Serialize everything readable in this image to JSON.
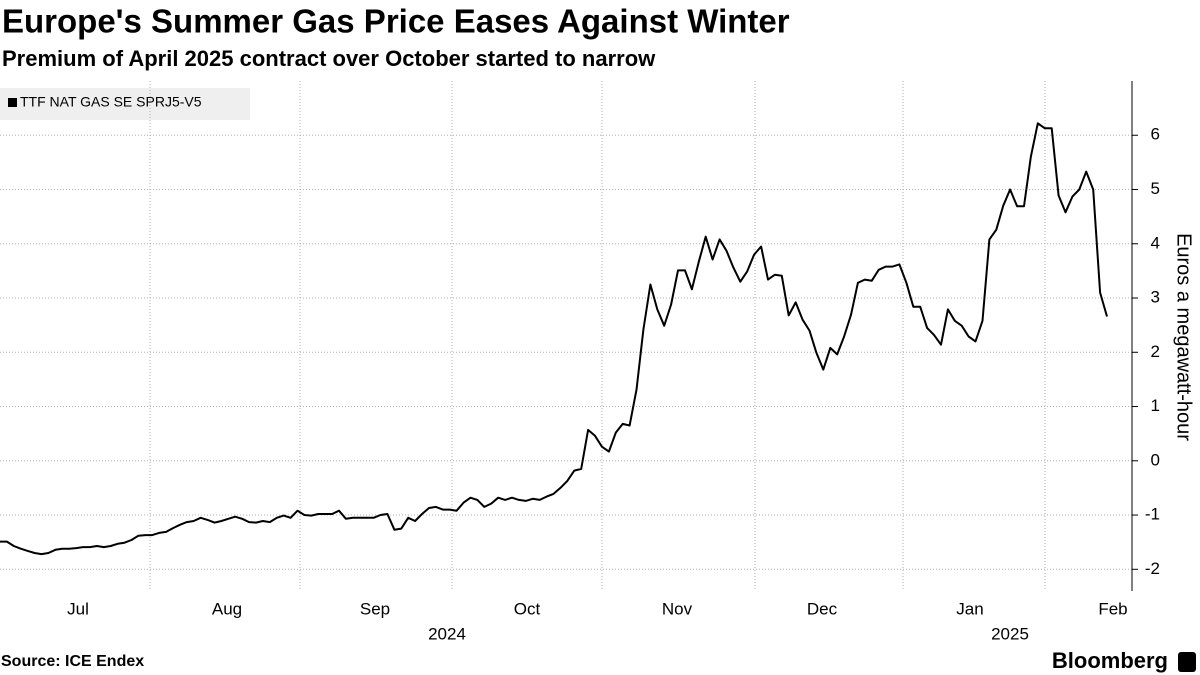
{
  "chart_data": {
    "type": "line",
    "title": "Europe's Summer Gas Price Eases Against Winter",
    "subtitle": "Premium of April 2025 contract over October started to narrow",
    "y_axis_label": "Euros a megawatt-hour",
    "source": "Source: ICE Endex",
    "brand": "Bloomberg",
    "x_labels": [
      "Jul",
      "Aug",
      "Sep",
      "Oct",
      "Nov",
      "Dec",
      "Jan",
      "Feb"
    ],
    "year_labels": [
      "2024",
      "2025"
    ],
    "ylim": [
      -2.4,
      7
    ],
    "yticks": [
      -2,
      -1,
      0,
      1,
      2,
      3,
      4,
      5,
      6
    ],
    "grid": true,
    "legend": "top-left",
    "series": [
      {
        "name": "TTF NAT GAS SE SPRJ5-V5",
        "color": "#000000",
        "values": [
          -1.49,
          -1.49,
          -1.57,
          -1.62,
          -1.66,
          -1.7,
          -1.72,
          -1.7,
          -1.64,
          -1.62,
          -1.62,
          -1.61,
          -1.59,
          -1.59,
          -1.57,
          -1.59,
          -1.57,
          -1.53,
          -1.51,
          -1.46,
          -1.38,
          -1.37,
          -1.37,
          -1.33,
          -1.31,
          -1.24,
          -1.18,
          -1.13,
          -1.11,
          -1.05,
          -1.09,
          -1.14,
          -1.11,
          -1.07,
          -1.03,
          -1.07,
          -1.13,
          -1.14,
          -1.11,
          -1.13,
          -1.05,
          -1.01,
          -1.05,
          -0.92,
          -1.0,
          -1.01,
          -0.98,
          -0.98,
          -0.98,
          -0.92,
          -1.07,
          -1.05,
          -1.05,
          -1.05,
          -1.05,
          -1.0,
          -0.98,
          -1.27,
          -1.25,
          -1.05,
          -1.11,
          -0.98,
          -0.87,
          -0.85,
          -0.9,
          -0.9,
          -0.92,
          -0.77,
          -0.68,
          -0.72,
          -0.85,
          -0.79,
          -0.68,
          -0.72,
          -0.68,
          -0.72,
          -0.74,
          -0.7,
          -0.72,
          -0.66,
          -0.61,
          -0.5,
          -0.37,
          -0.18,
          -0.15,
          0.57,
          0.46,
          0.26,
          0.17,
          0.52,
          0.68,
          0.65,
          1.31,
          2.42,
          3.25,
          2.79,
          2.49,
          2.88,
          3.51,
          3.51,
          3.16,
          3.67,
          4.13,
          3.71,
          4.08,
          3.87,
          3.56,
          3.3,
          3.49,
          3.8,
          3.95,
          3.34,
          3.43,
          3.41,
          2.68,
          2.92,
          2.6,
          2.4,
          1.99,
          1.68,
          2.08,
          1.96,
          2.29,
          2.69,
          3.28,
          3.34,
          3.32,
          3.52,
          3.58,
          3.58,
          3.62,
          3.28,
          2.84,
          2.84,
          2.45,
          2.32,
          2.14,
          2.79,
          2.58,
          2.49,
          2.29,
          2.2,
          2.58,
          4.08,
          4.26,
          4.7,
          5.0,
          4.69,
          4.69,
          5.61,
          6.22,
          6.13,
          6.13,
          4.89,
          4.58,
          4.87,
          5.0,
          5.33,
          5.0,
          3.1,
          2.66
        ]
      }
    ]
  }
}
